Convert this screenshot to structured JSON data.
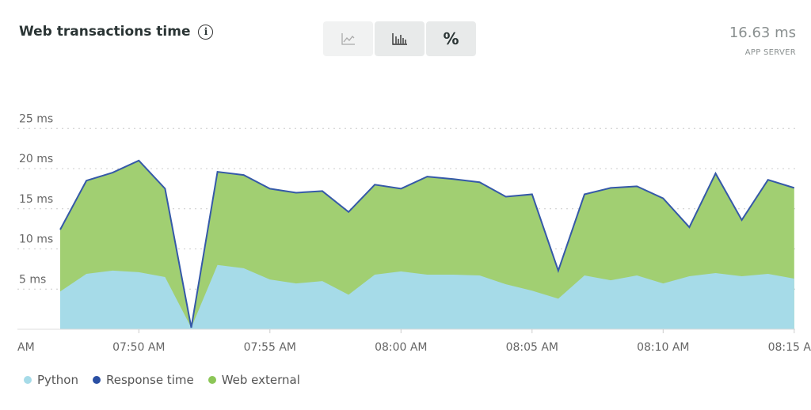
{
  "header": {
    "title": "Web transactions time",
    "info_icon": "info-icon",
    "value": "16.63 ms",
    "value_label": "APP SERVER"
  },
  "toggles": [
    {
      "name": "area-chart-icon"
    },
    {
      "name": "bar-chart-icon"
    },
    {
      "label": "%"
    }
  ],
  "colors": {
    "python": "#a6dbe8",
    "web_external": "#a1cf72",
    "response_time": "#3559a8"
  },
  "chart_data": {
    "type": "area",
    "stacked": true,
    "ylim": [
      0,
      25
    ],
    "yticks": [
      "25 ms",
      "20 ms",
      "15 ms",
      "10 ms",
      "5 ms"
    ],
    "ytick_values": [
      25,
      20,
      15,
      10,
      5
    ],
    "xtick_labels": [
      "AM",
      "07:50 AM",
      "07:55 AM",
      "08:00 AM",
      "08:05 AM",
      "08:10 AM",
      "08:15 AM"
    ],
    "x": [
      "07:47",
      "07:48",
      "07:49",
      "07:50",
      "07:51",
      "07:52",
      "07:53",
      "07:54",
      "07:55",
      "07:56",
      "07:57",
      "07:58",
      "07:59",
      "08:00",
      "08:01",
      "08:02",
      "08:03",
      "08:04",
      "08:05",
      "08:06",
      "08:07",
      "08:08",
      "08:09",
      "08:10",
      "08:11",
      "08:12",
      "08:13",
      "08:14",
      "08:15"
    ],
    "series": [
      {
        "name": "Python",
        "values": [
          4.7,
          6.9,
          7.3,
          7.1,
          6.5,
          0.2,
          8.0,
          7.6,
          6.2,
          5.7,
          6.0,
          4.3,
          6.8,
          7.2,
          6.8,
          6.8,
          6.7,
          5.6,
          4.8,
          3.8,
          6.7,
          6.1,
          6.7,
          5.7,
          6.6,
          7.0,
          6.6,
          6.9,
          6.3
        ]
      },
      {
        "name": "Response time",
        "values": [
          12.4,
          18.5,
          19.5,
          21.0,
          17.5,
          0.2,
          19.6,
          19.2,
          17.5,
          17.0,
          17.2,
          14.6,
          18.0,
          17.5,
          19.0,
          18.7,
          18.3,
          16.5,
          16.8,
          7.3,
          16.8,
          17.6,
          17.8,
          16.3,
          12.7,
          19.4,
          13.6,
          18.6,
          17.6
        ]
      },
      {
        "name": "Web external"
      }
    ],
    "grid": true,
    "legend": "bottom-left"
  },
  "legend": [
    "Python",
    "Response time",
    "Web external"
  ]
}
